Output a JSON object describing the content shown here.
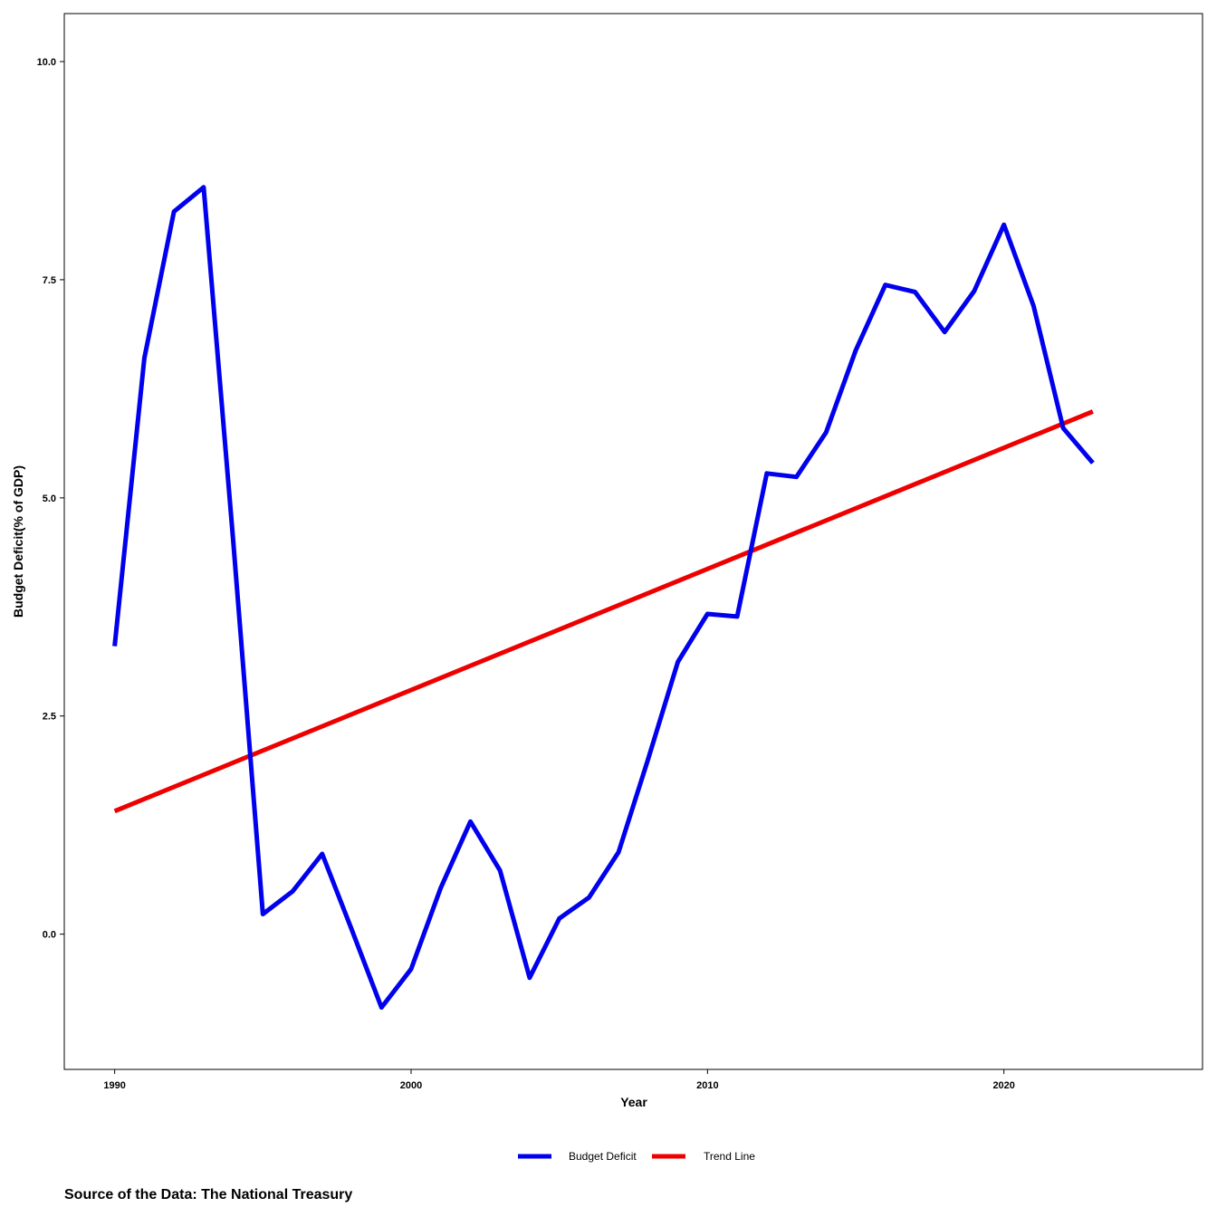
{
  "chart_data": {
    "type": "line",
    "xlabel": "Year",
    "ylabel": "Budget Deficit(% of GDP)",
    "xlim": [
      1988.3,
      2026.7
    ],
    "ylim": [
      -1.55,
      10.55
    ],
    "x_ticks": [
      1990,
      2000,
      2010,
      2020
    ],
    "y_ticks": [
      0.0,
      2.5,
      5.0,
      7.5,
      10.0
    ],
    "y_tick_labels": [
      "0.0",
      "2.5",
      "5.0",
      "7.5",
      "10.0"
    ],
    "grid": false,
    "legend_position": "bottom",
    "x": [
      1990,
      1991,
      1992,
      1993,
      1994,
      1995,
      1996,
      1997,
      1998,
      1999,
      2000,
      2001,
      2002,
      2003,
      2004,
      2005,
      2006,
      2007,
      2008,
      2009,
      2010,
      2011,
      2012,
      2013,
      2014,
      2015,
      2016,
      2017,
      2018,
      2019,
      2020,
      2021,
      2022,
      2023
    ],
    "series": [
      {
        "name": "Budget Deficit",
        "color": "#0000ee",
        "values": [
          3.3,
          6.6,
          8.28,
          8.56,
          4.5,
          0.23,
          0.49,
          0.92,
          0.05,
          -0.84,
          -0.4,
          0.53,
          1.29,
          0.73,
          -0.5,
          0.18,
          0.42,
          0.94,
          2.01,
          3.12,
          3.67,
          3.64,
          5.28,
          5.24,
          5.75,
          6.69,
          7.44,
          7.36,
          6.9,
          7.37,
          8.13,
          7.2,
          5.8,
          5.4
        ]
      },
      {
        "name": "Trend Line",
        "color": "#ee0000",
        "trend_start": [
          1990,
          1.41
        ],
        "trend_end": [
          2023,
          5.99
        ]
      }
    ]
  },
  "caption": "Source of the Data: The National Treasury"
}
